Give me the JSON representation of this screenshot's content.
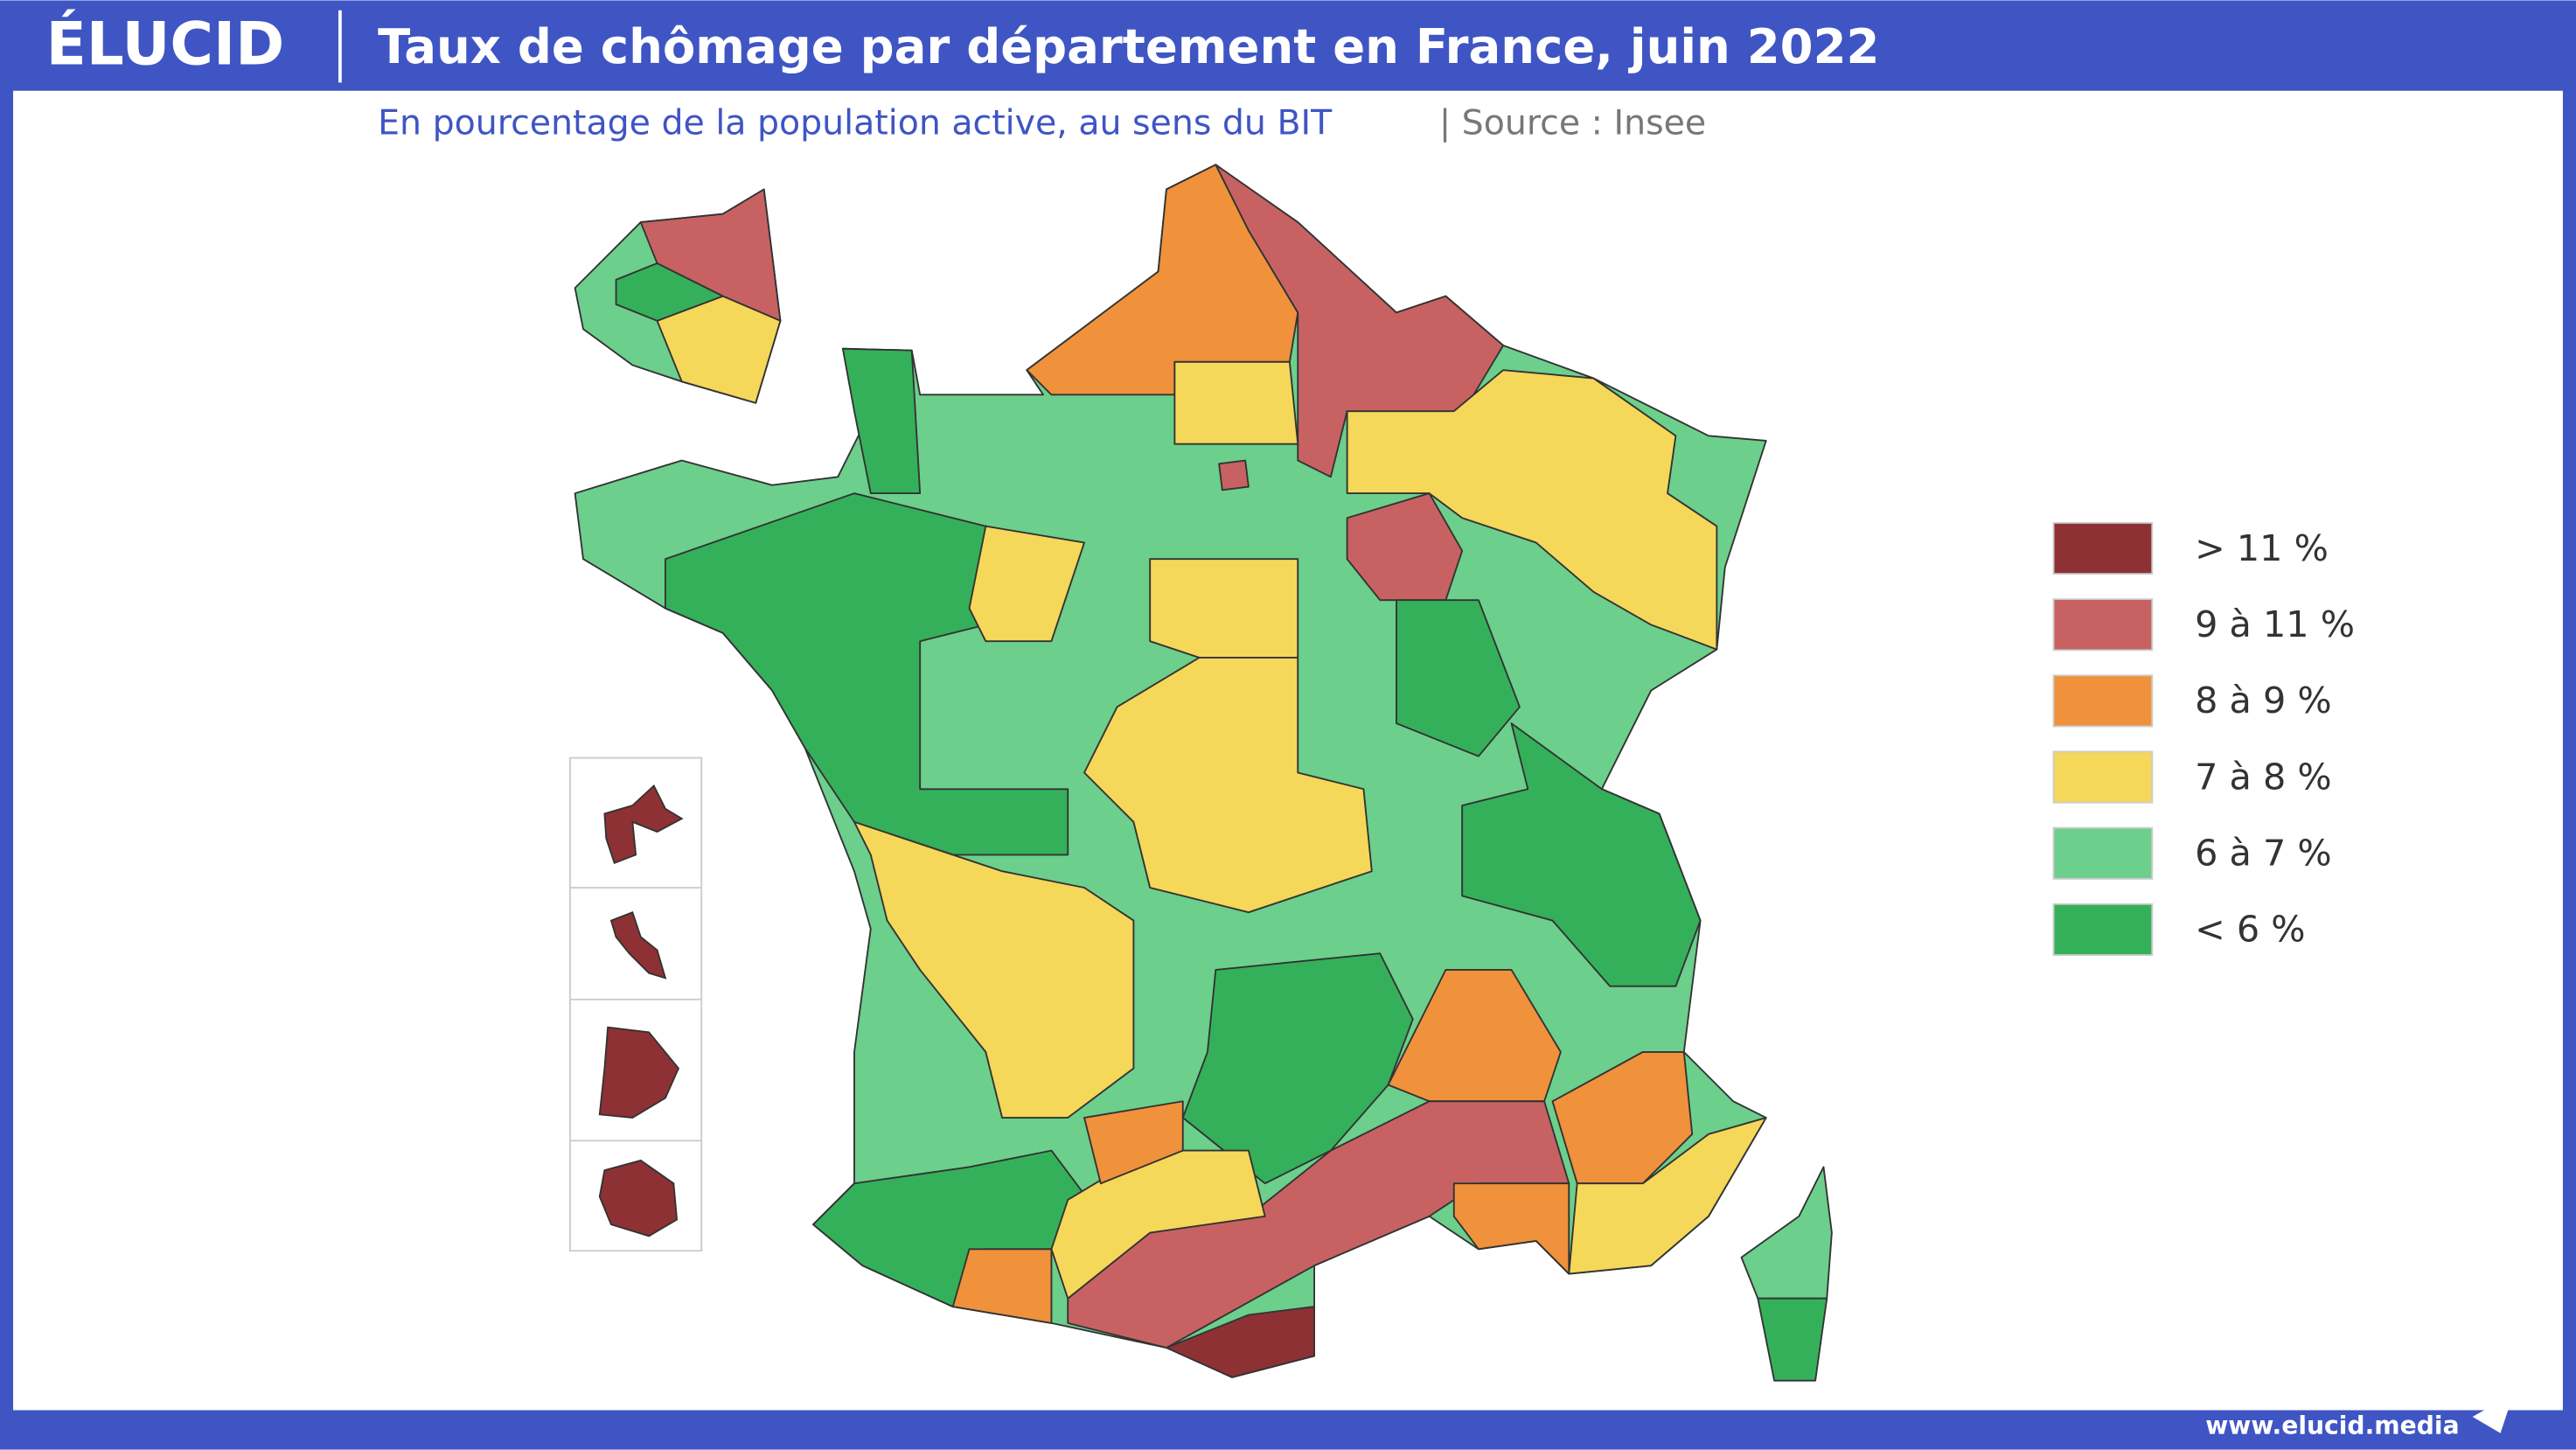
{
  "header": {
    "logo": "ÉLUCID",
    "title": "Taux de chômage par département en France, juin 2022",
    "subtitle": "En pourcentage de la population active, au sens du BIT",
    "source": "|  Source : Insee"
  },
  "legend": {
    "items": [
      {
        "label": "> 11 %",
        "color": "#8e3134"
      },
      {
        "label": "9 à 11 %",
        "color": "#c86262"
      },
      {
        "label": "8 à 9 %",
        "color": "#f0913b"
      },
      {
        "label": "7 à 8 %",
        "color": "#f5d75a"
      },
      {
        "label": "6 à 7 %",
        "color": "#6ccf8c"
      },
      {
        "label": "< 6 %",
        "color": "#35b05a"
      }
    ]
  },
  "footer": {
    "url": "www.elucid.media"
  }
}
